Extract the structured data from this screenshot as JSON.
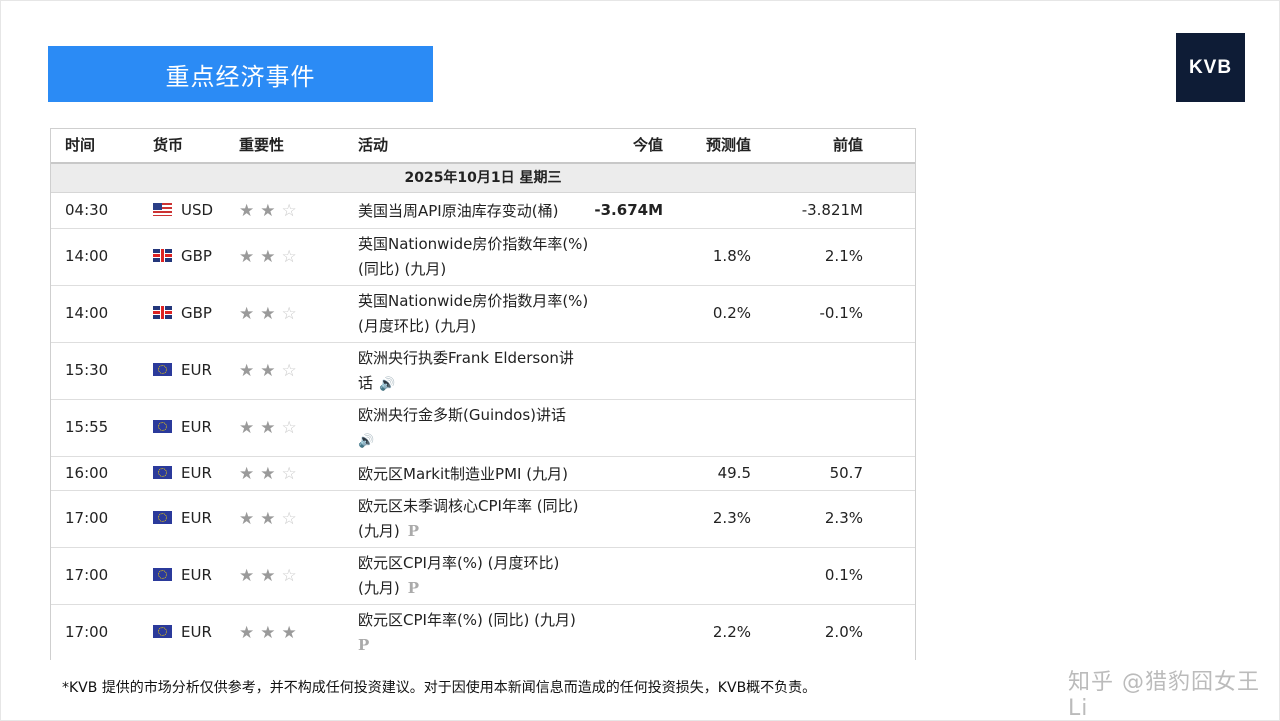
{
  "page": {
    "title": "重点经济事件",
    "logo": "KVB",
    "disclaimer": "*KVB 提供的市场分析仅供参考，并不构成任何投资建议。对于因使用本新闻信息而造成的任何投资损失，KVB概不负责。",
    "watermark": "知乎 @猎豹囧女王Li"
  },
  "table": {
    "headers": {
      "time": "时间",
      "currency": "货币",
      "importance": "重要性",
      "activity": "活动",
      "actual": "今值",
      "forecast": "预测值",
      "previous": "前值"
    },
    "date_label": "2025年10月1日  星期三",
    "rows": [
      {
        "time": "04:30",
        "flag": "us-flag-icon",
        "currency": "USD",
        "stars": 2,
        "activity": [
          "美国当周API原油库存变动(桶)"
        ],
        "actual": "-3.674M",
        "forecast": "",
        "previous": "-3.821M"
      },
      {
        "time": "14:00",
        "flag": "gb-flag-icon",
        "currency": "GBP",
        "stars": 2,
        "activity": [
          "英国Nationwide房价指数年率(%)",
          "(同比) (九月)"
        ],
        "actual": "",
        "forecast": "1.8%",
        "previous": "2.1%"
      },
      {
        "time": "14:00",
        "flag": "gb-flag-icon",
        "currency": "GBP",
        "stars": 2,
        "activity": [
          "英国Nationwide房价指数月率(%)",
          "(月度环比) (九月)"
        ],
        "actual": "",
        "forecast": "0.2%",
        "previous": "-0.1%"
      },
      {
        "time": "15:30",
        "flag": "eu-flag-icon",
        "currency": "EUR",
        "stars": 2,
        "activity": [
          "欧洲央行执委Frank Elderson讲",
          "话"
        ],
        "icon": "speaker-icon",
        "actual": "",
        "forecast": "",
        "previous": ""
      },
      {
        "time": "15:55",
        "flag": "eu-flag-icon",
        "currency": "EUR",
        "stars": 2,
        "activity": [
          "欧洲央行金多斯(Guindos)讲话",
          ""
        ],
        "icon": "speaker-icon",
        "actual": "",
        "forecast": "",
        "previous": ""
      },
      {
        "time": "16:00",
        "flag": "eu-flag-icon",
        "currency": "EUR",
        "stars": 2,
        "activity": [
          "欧元区Markit制造业PMI (九月)"
        ],
        "actual": "",
        "forecast": "49.5",
        "previous": "50.7"
      },
      {
        "time": "17:00",
        "flag": "eu-flag-icon",
        "currency": "EUR",
        "stars": 2,
        "activity": [
          "欧元区未季调核心CPI年率 (同比)",
          "(九月)"
        ],
        "icon": "preliminary-icon",
        "actual": "",
        "forecast": "2.3%",
        "previous": "2.3%"
      },
      {
        "time": "17:00",
        "flag": "eu-flag-icon",
        "currency": "EUR",
        "stars": 2,
        "activity": [
          "欧元区CPI月率(%) (月度环比)",
          "(九月)"
        ],
        "icon": "preliminary-icon",
        "actual": "",
        "forecast": "",
        "previous": "0.1%"
      },
      {
        "time": "17:00",
        "flag": "eu-flag-icon",
        "currency": "EUR",
        "stars": 3,
        "activity": [
          "欧元区CPI年率(%) (同比) (九月)",
          ""
        ],
        "icon": "preliminary-icon",
        "actual": "",
        "forecast": "2.2%",
        "previous": "2.0%"
      }
    ]
  },
  "icon_glyphs": {
    "star_full": "★",
    "star_empty": "☆",
    "speaker": "🔊",
    "preliminary": "P"
  }
}
